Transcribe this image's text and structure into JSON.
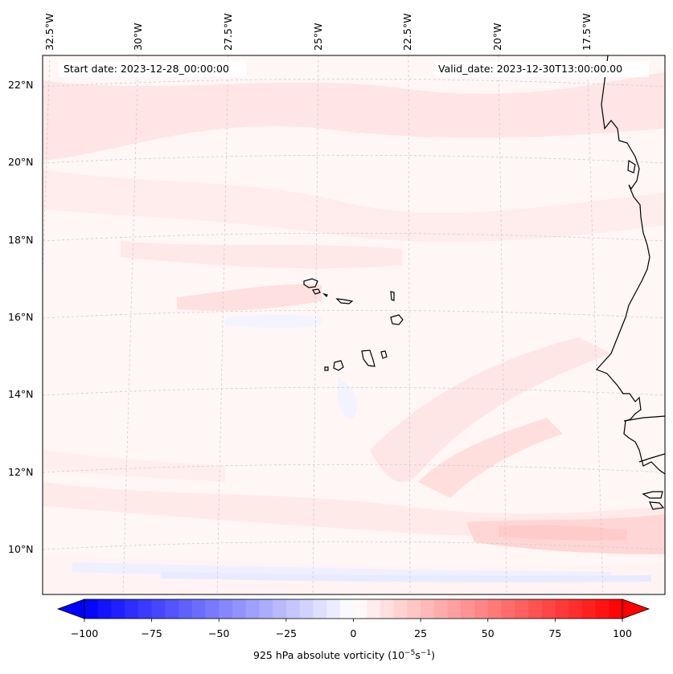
{
  "header": {
    "start_date": "Start date: 2023-12-28_00:00:00",
    "valid_date": "Valid_date: 2023-12-30T13:00:00.00"
  },
  "axes": {
    "lon_labels": [
      "32.5°W",
      "30°W",
      "27.5°W",
      "25°W",
      "22.5°W",
      "20°W",
      "17.5°W"
    ],
    "lat_labels": [
      "22°N",
      "20°N",
      "18°N",
      "16°N",
      "14°N",
      "12°N",
      "10°N"
    ]
  },
  "colorbar": {
    "label_prefix": "925 hPa absolute vorticity (10",
    "label_exp1": "−5",
    "label_mid": "s",
    "label_exp2": "−1",
    "label_suffix": ")",
    "ticks": [
      "−100",
      "−75",
      "−50",
      "−25",
      "0",
      "25",
      "50",
      "75",
      "100"
    ],
    "min": -100,
    "max": 100,
    "colors": {
      "negative": "#0000ff",
      "neutral": "#ffffff",
      "positive": "#ff0000"
    }
  },
  "map": {
    "projection": "lambert-conformal",
    "gridlines": true,
    "features": [
      "coastline-west-africa",
      "cape-verde-islands"
    ]
  }
}
